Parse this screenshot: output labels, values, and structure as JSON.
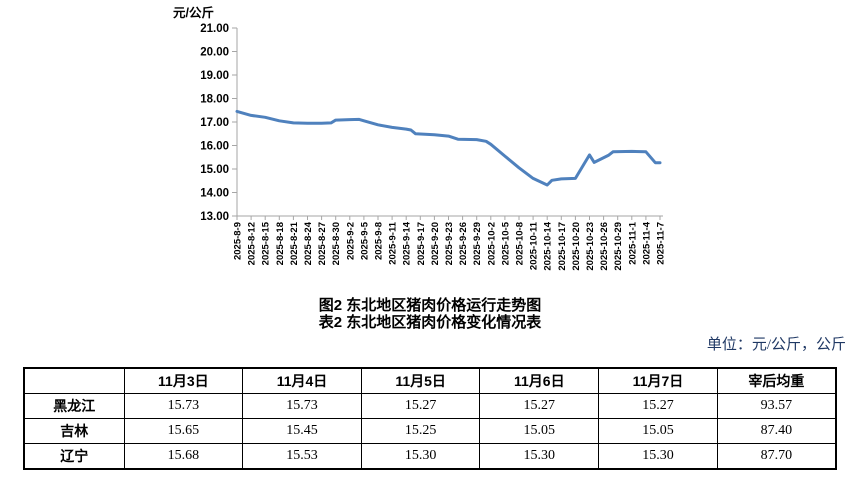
{
  "chart_data": {
    "type": "line",
    "y_axis_title": "元/公斤",
    "ylim": [
      13,
      21
    ],
    "y_tick_labels": [
      "21.00",
      "20.00",
      "19.00",
      "18.00",
      "17.00",
      "16.00",
      "15.00",
      "14.00",
      "13.00"
    ],
    "x_max_day": 90,
    "x_label_interval_days": 3,
    "x_labels": [
      "2025-8-9",
      "2025-8-12",
      "2025-8-15",
      "2025-8-18",
      "2025-8-21",
      "2025-8-24",
      "2025-8-27",
      "2025-8-30",
      "2025-9-2",
      "2025-9-5",
      "2025-9-8",
      "2025-9-11",
      "2025-9-14",
      "2025-9-17",
      "2025-9-20",
      "2025-9-23",
      "2025-9-26",
      "2025-9-29",
      "2025-10-2",
      "2025-10-5",
      "2025-10-8",
      "2025-10-11",
      "2025-10-14",
      "2025-10-17",
      "2025-10-20",
      "2025-10-23",
      "2025-10-26",
      "2025-10-29",
      "2025-11-1",
      "2025-11-4",
      "2025-11-7"
    ],
    "grid": false,
    "legend": "none",
    "line_color": "#4F81BD",
    "axis_color": "#A6A6A6",
    "series": [
      {
        "name": "东北地区猪肉价格",
        "points": [
          {
            "day": 0,
            "value": 17.45
          },
          {
            "day": 3,
            "value": 17.28
          },
          {
            "day": 6,
            "value": 17.2
          },
          {
            "day": 9,
            "value": 17.05
          },
          {
            "day": 12,
            "value": 16.96
          },
          {
            "day": 15,
            "value": 16.95
          },
          {
            "day": 18,
            "value": 16.95
          },
          {
            "day": 20,
            "value": 16.96
          },
          {
            "day": 21,
            "value": 17.08
          },
          {
            "day": 24,
            "value": 17.1
          },
          {
            "day": 26,
            "value": 17.11
          },
          {
            "day": 27,
            "value": 17.05
          },
          {
            "day": 30,
            "value": 16.88
          },
          {
            "day": 33,
            "value": 16.77
          },
          {
            "day": 36,
            "value": 16.7
          },
          {
            "day": 37,
            "value": 16.66
          },
          {
            "day": 38,
            "value": 16.5
          },
          {
            "day": 42,
            "value": 16.46
          },
          {
            "day": 45,
            "value": 16.4
          },
          {
            "day": 47,
            "value": 16.27
          },
          {
            "day": 51,
            "value": 16.25
          },
          {
            "day": 53,
            "value": 16.18
          },
          {
            "day": 54,
            "value": 16.05
          },
          {
            "day": 57,
            "value": 15.55
          },
          {
            "day": 60,
            "value": 15.05
          },
          {
            "day": 63,
            "value": 14.6
          },
          {
            "day": 66,
            "value": 14.32
          },
          {
            "day": 67,
            "value": 14.52
          },
          {
            "day": 69,
            "value": 14.58
          },
          {
            "day": 72,
            "value": 14.6
          },
          {
            "day": 75,
            "value": 15.6
          },
          {
            "day": 76,
            "value": 15.28
          },
          {
            "day": 79,
            "value": 15.58
          },
          {
            "day": 80,
            "value": 15.73
          },
          {
            "day": 84,
            "value": 15.75
          },
          {
            "day": 87,
            "value": 15.73
          },
          {
            "day": 89,
            "value": 15.27
          },
          {
            "day": 90,
            "value": 15.27
          }
        ]
      }
    ]
  },
  "titles": {
    "figure": "图2  东北地区猪肉价格运行走势图",
    "table": "表2  东北地区猪肉价格变化情况表"
  },
  "unit_note": "单位：元/公斤，公斤",
  "table": {
    "headers": [
      "",
      "11月3日",
      "11月4日",
      "11月5日",
      "11月6日",
      "11月7日",
      "宰后均重"
    ],
    "rows": [
      {
        "label": "黑龙江",
        "values": [
          "15.73",
          "15.73",
          "15.27",
          "15.27",
          "15.27",
          "93.57"
        ]
      },
      {
        "label": "吉林",
        "values": [
          "15.65",
          "15.45",
          "15.25",
          "15.05",
          "15.05",
          "87.40"
        ]
      },
      {
        "label": "辽宁",
        "values": [
          "15.68",
          "15.53",
          "15.30",
          "15.30",
          "15.30",
          "87.70"
        ]
      }
    ]
  }
}
